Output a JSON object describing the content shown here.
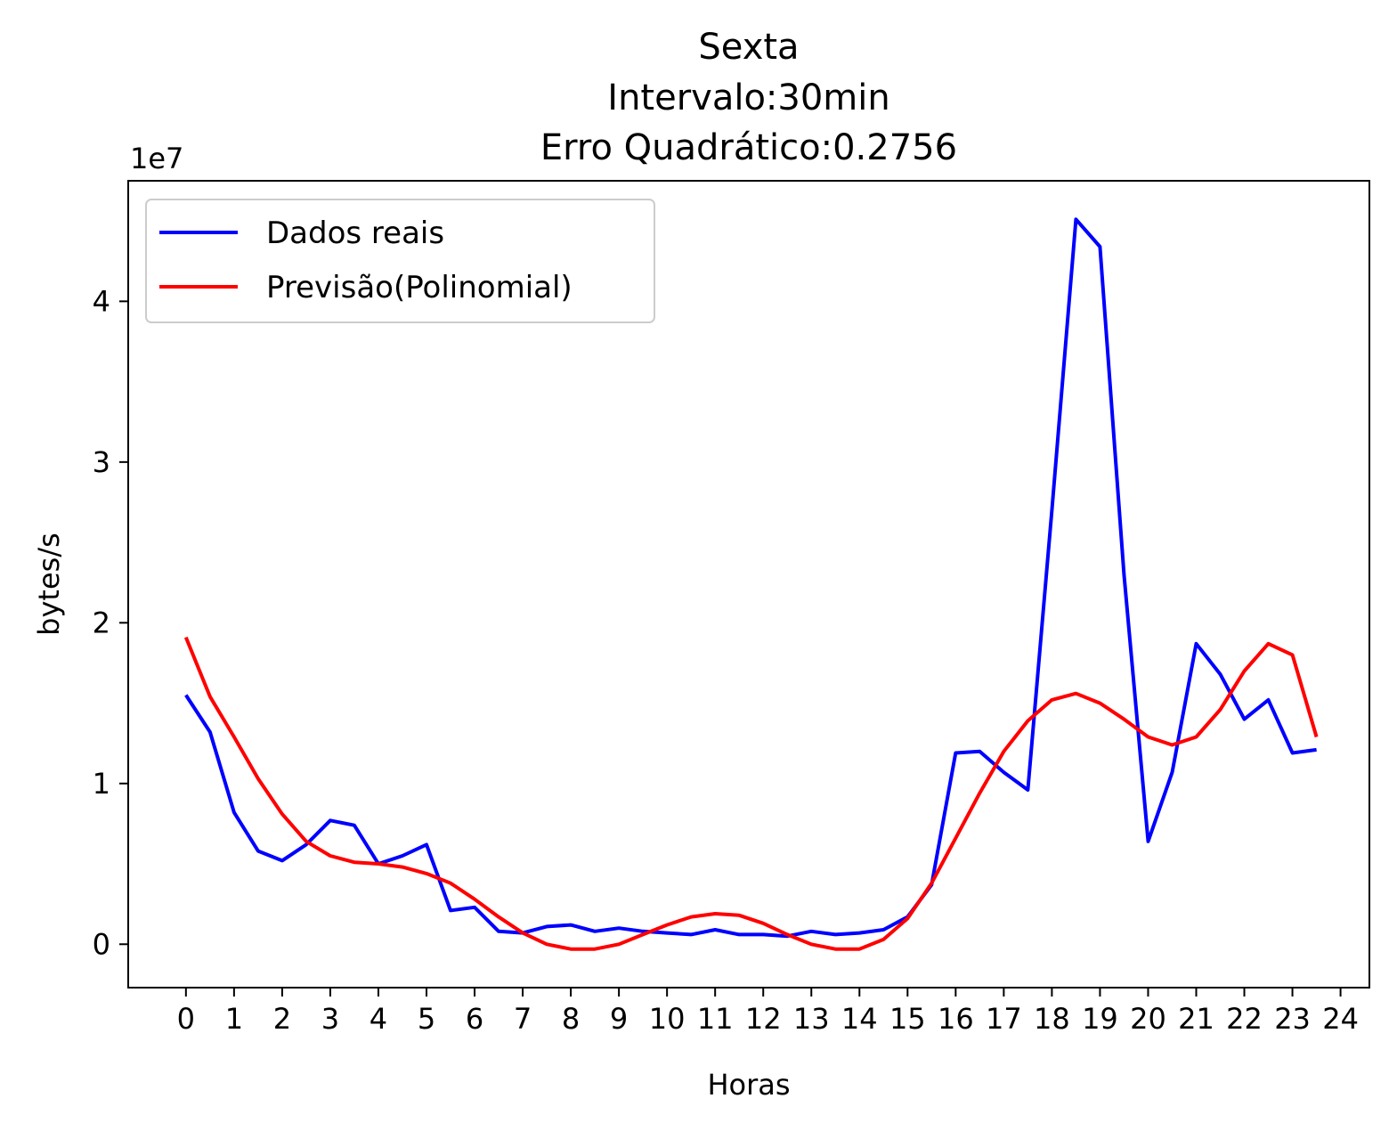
{
  "chart_data": {
    "type": "line",
    "title_lines": [
      "Sexta",
      "Intervalo:30min",
      "Erro Quadrático:0.2756"
    ],
    "xlabel": "Horas",
    "ylabel": "bytes/s",
    "y_offset_label": "1e7",
    "xticks": [
      "0",
      "1",
      "2",
      "3",
      "4",
      "5",
      "6",
      "7",
      "8",
      "9",
      "10",
      "11",
      "12",
      "13",
      "14",
      "15",
      "16",
      "17",
      "18",
      "19",
      "20",
      "21",
      "22",
      "23",
      "24"
    ],
    "yticks": [
      "0",
      "1",
      "2",
      "3",
      "4"
    ],
    "xlim": [
      -1.2,
      24.6
    ],
    "ylim": [
      -0.27,
      4.75
    ],
    "y_unit_scale": 10000000,
    "legend_position": "upper-left",
    "grid": false,
    "x": [
      0,
      0.5,
      1,
      1.5,
      2,
      2.5,
      3,
      3.5,
      4,
      4.5,
      5,
      5.5,
      6,
      6.5,
      7,
      7.5,
      8,
      8.5,
      9,
      9.5,
      10,
      10.5,
      11,
      11.5,
      12,
      12.5,
      13,
      13.5,
      14,
      14.5,
      15,
      15.5,
      16,
      16.5,
      17,
      17.5,
      18,
      18.5,
      19,
      19.5,
      20,
      20.5,
      21,
      21.5,
      22,
      22.5,
      23,
      23.5
    ],
    "series": [
      {
        "name": "Dados reais",
        "color": "#0000ff",
        "values": [
          1.55,
          1.32,
          0.82,
          0.58,
          0.52,
          0.62,
          0.77,
          0.74,
          0.5,
          0.55,
          0.62,
          0.21,
          0.23,
          0.08,
          0.07,
          0.11,
          0.12,
          0.08,
          0.1,
          0.08,
          0.07,
          0.06,
          0.09,
          0.06,
          0.06,
          0.05,
          0.08,
          0.06,
          0.07,
          0.09,
          0.17,
          0.37,
          1.19,
          1.2,
          1.07,
          0.96,
          2.7,
          4.51,
          4.34,
          2.3,
          0.64,
          1.07,
          1.87,
          1.68,
          1.4,
          1.52,
          1.19,
          1.21
        ]
      },
      {
        "name": "Previsão(Polinomial)",
        "color": "#ff0000",
        "values": [
          1.91,
          1.54,
          1.29,
          1.03,
          0.81,
          0.64,
          0.55,
          0.51,
          0.5,
          0.48,
          0.44,
          0.38,
          0.28,
          0.17,
          0.07,
          0.0,
          -0.03,
          -0.03,
          0.0,
          0.06,
          0.12,
          0.17,
          0.19,
          0.18,
          0.13,
          0.06,
          0.0,
          -0.03,
          -0.03,
          0.03,
          0.16,
          0.38,
          0.66,
          0.94,
          1.2,
          1.39,
          1.52,
          1.56,
          1.5,
          1.4,
          1.29,
          1.24,
          1.29,
          1.46,
          1.7,
          1.87,
          1.8,
          1.29
        ]
      }
    ]
  }
}
